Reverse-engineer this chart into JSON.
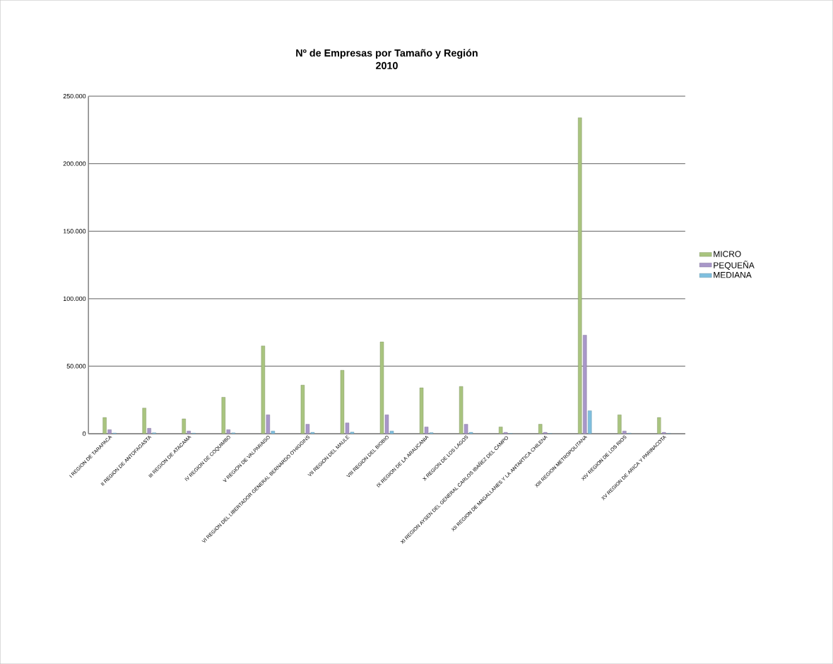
{
  "chart_data": {
    "type": "bar",
    "title": "Nº de Empresas por Tamaño y Región\n2010",
    "categories": [
      "I REGION DE TARAPACA",
      "II REGION DE ANTOFAGASTA",
      "III REGION DE ATACAMA",
      "IV REGION DE COQUIMBO",
      "V REGION DE VALPARAISO",
      "VI REGION DEL LIBERTADOR GENERAL BERNARDO O'HIGGINS",
      "VII REGION DEL MAULE",
      "VIII REGION DEL BIOBIO",
      "IX REGION DE LA ARAUCANIA",
      "X REGION DE LOS LAGOS",
      "XI REGION AYSEN DEL GENERAL CARLOS IBAÑEZ DEL CAMPO",
      "XII REGION DE MAGALLANES Y LA ANTARTICA CHILENA",
      "XIII REGION METROPOLITANA",
      "XIV REGION DE LOS RIOS",
      "XV REGION DE ARICA Y PARINACOTA"
    ],
    "series": [
      {
        "name": "MICRO",
        "color": "#a9c47f",
        "values": [
          12000,
          19000,
          11000,
          27000,
          65000,
          36000,
          47000,
          68000,
          34000,
          35000,
          5000,
          7000,
          234000,
          14000,
          12000
        ]
      },
      {
        "name": "PEQUEÑA",
        "color": "#a897c9",
        "values": [
          3000,
          4000,
          2000,
          3000,
          14000,
          7000,
          8000,
          14000,
          5000,
          7000,
          1000,
          1000,
          73000,
          2000,
          1000
        ]
      },
      {
        "name": "MEDIANA",
        "color": "#7fbfdf",
        "values": [
          500,
          700,
          400,
          600,
          2000,
          1000,
          1200,
          2000,
          800,
          1000,
          200,
          200,
          17000,
          400,
          300
        ]
      }
    ],
    "ylim": [
      0,
      250000
    ],
    "yticks": [
      {
        "value": 0,
        "label": "0"
      },
      {
        "value": 50000,
        "label": "50.000"
      },
      {
        "value": 100000,
        "label": "100.000"
      },
      {
        "value": 150000,
        "label": "150.000"
      },
      {
        "value": 200000,
        "label": "200.000"
      },
      {
        "value": 250000,
        "label": "250.000"
      }
    ],
    "grid": "y",
    "legend": "right"
  }
}
